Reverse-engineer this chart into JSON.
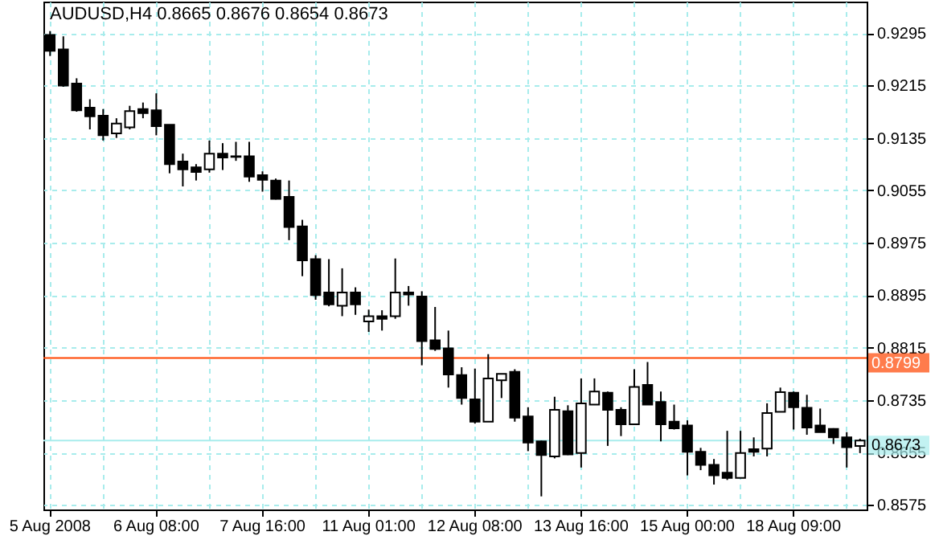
{
  "chart_data": {
    "type": "candlestick",
    "title": "AUDUSD,H4  0.8665 0.8676 0.8654 0.8673",
    "categories": [
      "5 Aug 2008",
      null,
      null,
      null,
      null,
      null,
      null,
      null,
      "6 Aug 08:00",
      null,
      null,
      null,
      null,
      null,
      null,
      null,
      "7 Aug 16:00",
      null,
      null,
      null,
      null,
      null,
      null,
      null,
      "11 Aug 01:00",
      null,
      null,
      null,
      null,
      null,
      null,
      null,
      "12 Aug 08:00",
      null,
      null,
      null,
      null,
      null,
      null,
      null,
      "13 Aug 16:00",
      null,
      null,
      null,
      null,
      null,
      null,
      null,
      "15 Aug 00:00",
      null,
      null,
      null,
      null,
      null,
      null,
      null,
      "18 Aug 09:00",
      null,
      null,
      null,
      null,
      null
    ],
    "ohlc": [
      [
        0.9292,
        0.9298,
        0.926,
        0.9268
      ],
      [
        0.927,
        0.929,
        0.9213,
        0.9215
      ],
      [
        0.9218,
        0.9226,
        0.9175,
        0.9177
      ],
      [
        0.9181,
        0.9194,
        0.9148,
        0.9168
      ],
      [
        0.9169,
        0.9179,
        0.9131,
        0.9139
      ],
      [
        0.9142,
        0.9165,
        0.9135,
        0.9157
      ],
      [
        0.9151,
        0.9184,
        0.9148,
        0.9176
      ],
      [
        0.9179,
        0.9189,
        0.9165,
        0.9173
      ],
      [
        0.9177,
        0.9203,
        0.9139,
        0.9153
      ],
      [
        0.9155,
        0.9155,
        0.9081,
        0.9095
      ],
      [
        0.9099,
        0.9111,
        0.9061,
        0.9087
      ],
      [
        0.909,
        0.9095,
        0.907,
        0.9083
      ],
      [
        0.9087,
        0.9131,
        0.9082,
        0.9111
      ],
      [
        0.9111,
        0.9127,
        0.9086,
        0.9105
      ],
      [
        0.9107,
        0.9129,
        0.91,
        0.9106
      ],
      [
        0.9107,
        0.9129,
        0.9068,
        0.9076
      ],
      [
        0.9078,
        0.9084,
        0.9053,
        0.9071
      ],
      [
        0.907,
        0.9073,
        0.9041,
        0.9042
      ],
      [
        0.9045,
        0.907,
        0.8979,
        0.8999
      ],
      [
        0.9,
        0.901,
        0.8924,
        0.8948
      ],
      [
        0.895,
        0.8956,
        0.8888,
        0.8895
      ],
      [
        0.8899,
        0.895,
        0.8878,
        0.8881
      ],
      [
        0.8879,
        0.8936,
        0.8863,
        0.8899
      ],
      [
        0.8899,
        0.8907,
        0.8865,
        0.8881
      ],
      [
        0.8855,
        0.8873,
        0.8839,
        0.8863
      ],
      [
        0.8863,
        0.8872,
        0.8841,
        0.8859
      ],
      [
        0.8863,
        0.8951,
        0.8859,
        0.8899
      ],
      [
        0.8899,
        0.8909,
        0.8879,
        0.8896
      ],
      [
        0.8893,
        0.8901,
        0.8788,
        0.8825
      ],
      [
        0.8826,
        0.8877,
        0.881,
        0.8813
      ],
      [
        0.8814,
        0.8841,
        0.8754,
        0.8774
      ],
      [
        0.8773,
        0.8785,
        0.8728,
        0.8738
      ],
      [
        0.8736,
        0.8783,
        0.8699,
        0.8702
      ],
      [
        0.8702,
        0.8805,
        0.8702,
        0.8768
      ],
      [
        0.8765,
        0.8775,
        0.8738,
        0.8775
      ],
      [
        0.8778,
        0.8782,
        0.8702,
        0.8708
      ],
      [
        0.871,
        0.8724,
        0.8657,
        0.867
      ],
      [
        0.8672,
        0.8673,
        0.8588,
        0.8651
      ],
      [
        0.8649,
        0.874,
        0.8646,
        0.872
      ],
      [
        0.8718,
        0.8727,
        0.8651,
        0.8652
      ],
      [
        0.8654,
        0.8768,
        0.8632,
        0.873
      ],
      [
        0.8728,
        0.8768,
        0.8728,
        0.8748
      ],
      [
        0.8746,
        0.8748,
        0.8665,
        0.872
      ],
      [
        0.872,
        0.8724,
        0.868,
        0.8698
      ],
      [
        0.8698,
        0.8782,
        0.8698,
        0.8755
      ],
      [
        0.8758,
        0.8793,
        0.8728,
        0.8728
      ],
      [
        0.8732,
        0.8748,
        0.8672,
        0.8698
      ],
      [
        0.8702,
        0.8728,
        0.869,
        0.8692
      ],
      [
        0.8696,
        0.8704,
        0.862,
        0.8656
      ],
      [
        0.8656,
        0.8662,
        0.8628,
        0.8636
      ],
      [
        0.8636,
        0.8645,
        0.8606,
        0.862
      ],
      [
        0.8624,
        0.8688,
        0.8613,
        0.8616
      ],
      [
        0.8616,
        0.8688,
        0.8616,
        0.8654
      ],
      [
        0.866,
        0.8678,
        0.8649,
        0.8656
      ],
      [
        0.8661,
        0.873,
        0.8649,
        0.8715
      ],
      [
        0.8717,
        0.8754,
        0.8717,
        0.8747
      ],
      [
        0.8746,
        0.8748,
        0.869,
        0.8724
      ],
      [
        0.8723,
        0.8743,
        0.8682,
        0.8693
      ],
      [
        0.8696,
        0.8722,
        0.8686,
        0.8686
      ],
      [
        0.8691,
        0.8692,
        0.8668,
        0.8678
      ],
      [
        0.8678,
        0.8686,
        0.8632,
        0.8663
      ],
      [
        0.8665,
        0.8676,
        0.8654,
        0.8673
      ]
    ],
    "ylim": [
      0.8568,
      0.9343
    ],
    "yticks": [
      0.9295,
      0.9215,
      0.9135,
      0.9055,
      0.8975,
      0.8895,
      0.8815,
      0.8735,
      0.8655,
      0.8575
    ],
    "ref_lines": [
      {
        "axis": "y",
        "value": 0.8799,
        "label": "0.8799",
        "color": "#ff4500"
      },
      {
        "axis": "y",
        "value": 0.8673,
        "label": "0.8673",
        "color": "#a8ecec"
      }
    ],
    "grid": true
  }
}
